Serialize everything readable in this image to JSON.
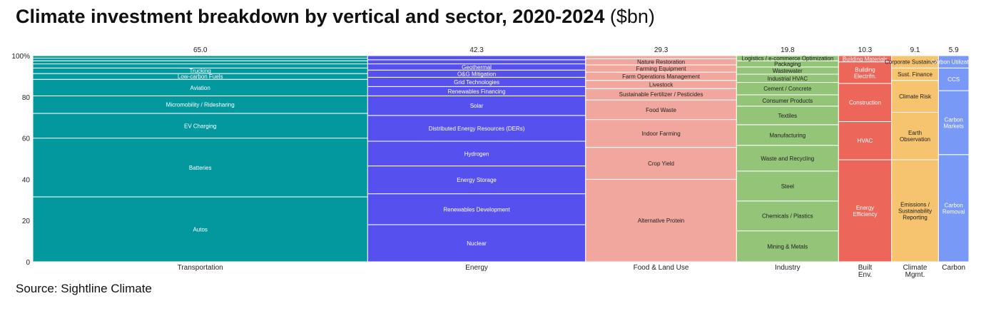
{
  "title": "Climate investment breakdown by vertical and sector, 2020-2024",
  "title_unit": "($bn)",
  "source": "Source: Sightline Climate",
  "chart_data": {
    "type": "marimekko",
    "title": "Climate investment breakdown by vertical and sector, 2020-2024 ($bn)",
    "ylim": [
      0,
      100
    ],
    "yticks": [
      0,
      20,
      40,
      60,
      80,
      100
    ],
    "ytick_labels": [
      "0",
      "20",
      "40",
      "60",
      "80",
      "100%"
    ],
    "columns": [
      {
        "name": "Transportation",
        "label_lines": [
          "Transportation"
        ],
        "total": 65.0,
        "total_label": "65.0",
        "color": "#03989e",
        "segments": [
          {
            "label": "Autos",
            "share": 31.5
          },
          {
            "label": "Batteries",
            "share": 28.5
          },
          {
            "label": "EV Charging",
            "share": 12.0
          },
          {
            "label": "Micromobility / Ridesharing",
            "share": 8.5
          },
          {
            "label": "Aviation",
            "share": 8.0
          },
          {
            "label": "Low-carbon Fuels",
            "share": 2.8
          },
          {
            "label": "Trucking",
            "share": 2.7
          },
          {
            "label": "",
            "share": 2.0
          },
          {
            "label": "",
            "share": 1.5
          },
          {
            "label": "",
            "share": 1.3
          },
          {
            "label": "",
            "share": 1.2
          }
        ]
      },
      {
        "name": "Energy",
        "label_lines": [
          "Energy"
        ],
        "total": 42.3,
        "total_label": "42.3",
        "color": "#5651ee",
        "segments": [
          {
            "label": "Nuclear",
            "share": 18.0
          },
          {
            "label": "Renewables Development",
            "share": 15.0
          },
          {
            "label": "Energy Storage",
            "share": 13.5
          },
          {
            "label": "Hydrogen",
            "share": 12.0
          },
          {
            "label": "Distributed Energy Resources (DERs)",
            "share": 12.5
          },
          {
            "label": "Solar",
            "share": 9.5
          },
          {
            "label": "Renewables Financing",
            "share": 4.5
          },
          {
            "label": "Grid Technologies",
            "share": 4.5
          },
          {
            "label": "O&G Mitigation",
            "share": 3.5
          },
          {
            "label": "Geothermal",
            "share": 3.0
          },
          {
            "label": "",
            "share": 2.0
          },
          {
            "label": "",
            "share": 2.0
          }
        ]
      },
      {
        "name": "Food & Land Use",
        "label_lines": [
          "Food & Land Use"
        ],
        "total": 29.3,
        "total_label": "29.3",
        "color": "#f2a79e",
        "segments": [
          {
            "label": "Alternative Protein",
            "share": 40.0
          },
          {
            "label": "Crop Yield",
            "share": 15.5
          },
          {
            "label": "Indoor Farming",
            "share": 13.5
          },
          {
            "label": "Food Waste",
            "share": 9.5
          },
          {
            "label": "Sustainable Fertilizer / Pesticides",
            "share": 5.5
          },
          {
            "label": "Livestock",
            "share": 4.0
          },
          {
            "label": "Farm Operations Management",
            "share": 4.0
          },
          {
            "label": "Farming Equipment",
            "share": 3.5
          },
          {
            "label": "Nature Restoration",
            "share": 3.0
          },
          {
            "label": "",
            "share": 1.5
          }
        ]
      },
      {
        "name": "Industry",
        "label_lines": [
          "Industry"
        ],
        "total": 19.8,
        "total_label": "19.8",
        "color": "#93c477",
        "segments": [
          {
            "label": "Mining & Metals",
            "share": 15.0
          },
          {
            "label": "Chemicals / Plastics",
            "share": 14.5
          },
          {
            "label": "Steel",
            "share": 14.5
          },
          {
            "label": "Waste and Recycling",
            "share": 12.5
          },
          {
            "label": "Manufacturing",
            "share": 10.0
          },
          {
            "label": "Textiles",
            "share": 9.0
          },
          {
            "label": "Consumer Products",
            "share": 5.5
          },
          {
            "label": "Cement / Concrete",
            "share": 6.0
          },
          {
            "label": "Industrial HVAC",
            "share": 4.0
          },
          {
            "label": "Wastewater",
            "share": 3.5
          },
          {
            "label": "Packaging",
            "share": 3.0
          },
          {
            "label": "Logistics / e-commerce Optimization",
            "share": 2.5
          }
        ]
      },
      {
        "name": "Built Env.",
        "label_lines": [
          "Built",
          "Env."
        ],
        "total": 10.3,
        "total_label": "10.3",
        "color": "#ec6659",
        "segments": [
          {
            "label": "Energy Efficiency",
            "share": 49.5
          },
          {
            "label": "HVAC",
            "share": 18.5
          },
          {
            "label": "Construction",
            "share": 18.5
          },
          {
            "label": "Building Electrifn.",
            "share": 10.5
          },
          {
            "label": "Building Materials",
            "share": 3.0
          }
        ]
      },
      {
        "name": "Climate Mgmt.",
        "label_lines": [
          "Climate",
          "Mgmt."
        ],
        "total": 9.1,
        "total_label": "9.1",
        "color": "#f6c36f",
        "segments": [
          {
            "label": "Emissions / Sustainability Reporting",
            "share": 49.5
          },
          {
            "label": "Earth Observation",
            "share": 23.0
          },
          {
            "label": "Climate Risk",
            "share": 15.5
          },
          {
            "label": "Sust. Finance",
            "share": 6.0
          },
          {
            "label": "Corporate Sustainability",
            "share": 6.0
          }
        ]
      },
      {
        "name": "Carbon",
        "label_lines": [
          "Carbon"
        ],
        "total": 5.9,
        "total_label": "5.9",
        "color": "#7899f6",
        "segments": [
          {
            "label": "Carbon Removal",
            "share": 52.0
          },
          {
            "label": "Carbon Markets",
            "share": 31.0
          },
          {
            "label": "CCS",
            "share": 11.0
          },
          {
            "label": "Carbon Utilization",
            "share": 6.0
          }
        ]
      }
    ]
  }
}
